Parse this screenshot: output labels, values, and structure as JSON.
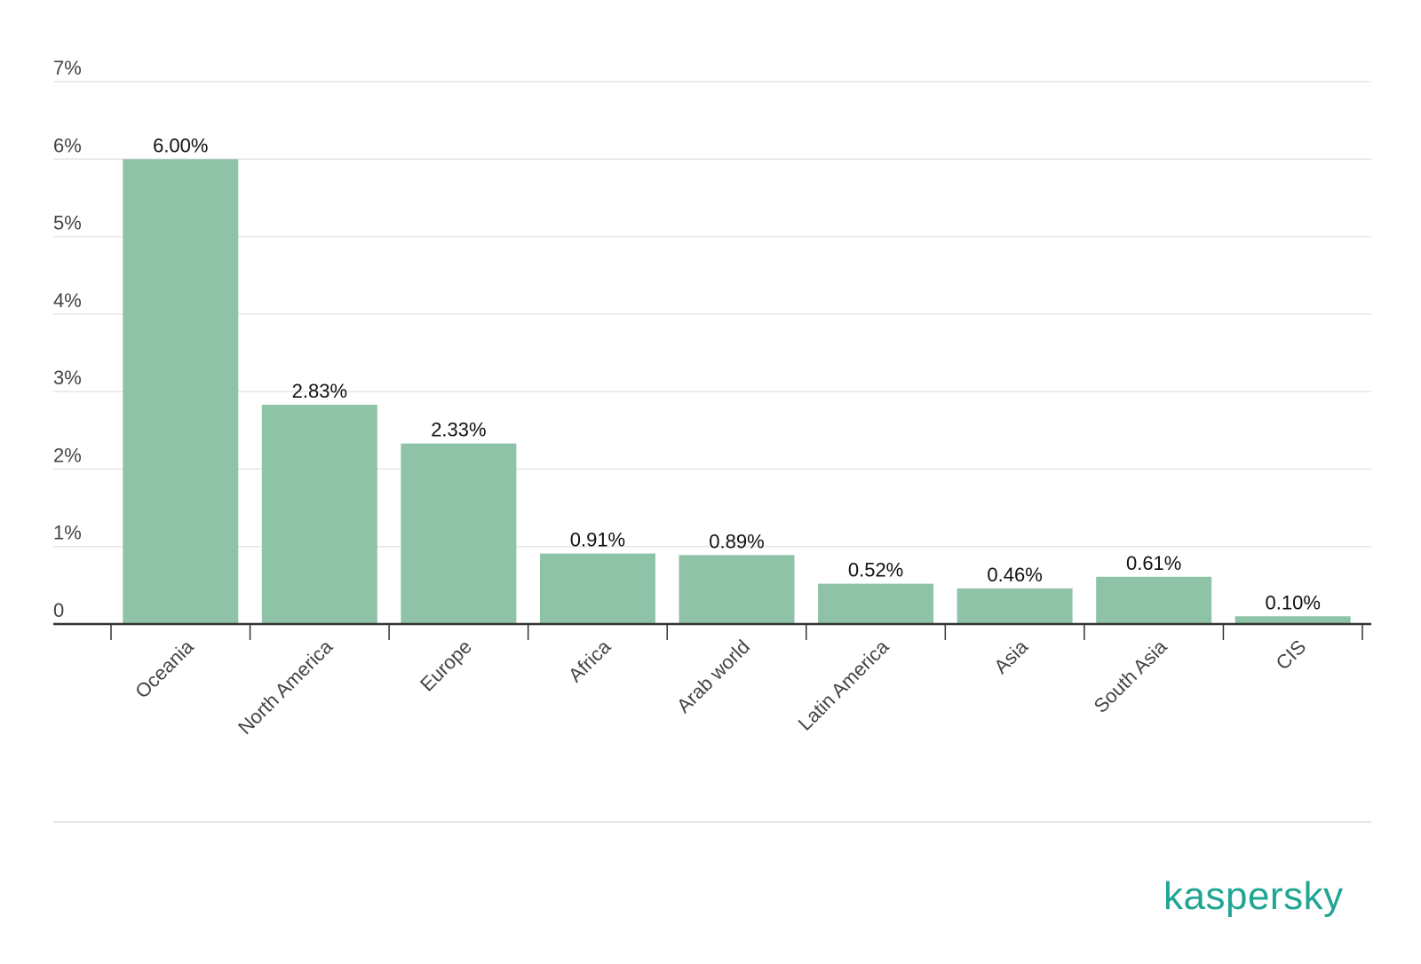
{
  "chart_data": {
    "type": "bar",
    "categories": [
      "Oceania",
      "North America",
      "Europe",
      "Africa",
      "Arab world",
      "Latin America",
      "Asia",
      "South Asia",
      "CIS"
    ],
    "values": [
      6.0,
      2.83,
      2.33,
      0.91,
      0.89,
      0.52,
      0.46,
      0.61,
      0.1
    ],
    "data_labels": [
      "6.00%",
      "2.83%",
      "2.33%",
      "0.91%",
      "0.89%",
      "0.52%",
      "0.46%",
      "0.61%",
      "0.10%"
    ],
    "y_ticks": [
      0,
      1,
      2,
      3,
      4,
      5,
      6,
      7
    ],
    "y_tick_labels": [
      "0",
      "1%",
      "2%",
      "3%",
      "4%",
      "5%",
      "6%",
      "7%"
    ],
    "ylim": [
      0,
      7
    ],
    "grid": true,
    "legend": "none",
    "colors": {
      "bar": "#8fc3a8",
      "axis": "#333333",
      "grid": "#e6e6e6"
    }
  },
  "brand": {
    "logo_text": "kaspersky",
    "color": "#1fa592"
  }
}
